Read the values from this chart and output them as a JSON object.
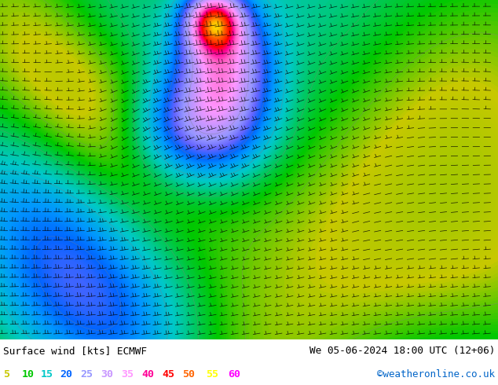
{
  "title_left": "Surface wind [kts] ECMWF",
  "title_right": "We 05-06-2024 18:00 UTC (12+06)",
  "watermark": "©weatheronline.co.uk",
  "bg_color": "#ffffff",
  "text_color": "#000000",
  "watermark_color": "#0064c8",
  "legend_values": [
    "5",
    "10",
    "15",
    "20",
    "25",
    "30",
    "35",
    "40",
    "45",
    "50",
    "55",
    "60"
  ],
  "legend_colors": [
    "#c8c800",
    "#00c800",
    "#00c8c8",
    "#0064ff",
    "#9696ff",
    "#c896ff",
    "#ff96ff",
    "#ff0096",
    "#ff0000",
    "#ff6400",
    "#ffff00",
    "#ff00ff"
  ],
  "figsize": [
    6.34,
    4.9
  ],
  "dpi": 100,
  "map_colors": [
    "#c8ff00",
    "#64c800",
    "#00c800",
    "#00c8c8",
    "#0064ff",
    "#6464ff",
    "#9696ff",
    "#c896ff",
    "#ff96ff",
    "#ff0096",
    "#ff0000",
    "#ff6400",
    "#ffff00",
    "#ff00ff"
  ]
}
